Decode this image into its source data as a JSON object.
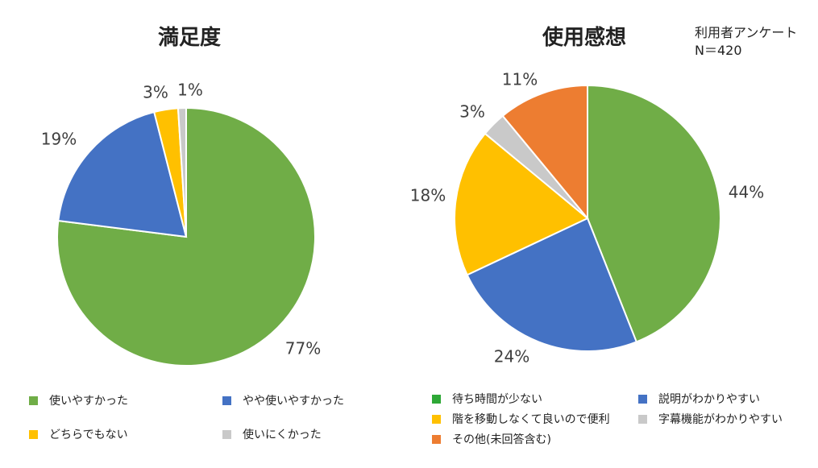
{
  "survey_note": {
    "line1": "利用者アンケート",
    "line2": "N＝420"
  },
  "colors": {
    "green": "#70AD47",
    "blue": "#4472C4",
    "yellow": "#FFC000",
    "gray": "#C9C9C9",
    "orange": "#ED7D31",
    "legend_green": "#2EA836"
  },
  "chart_data": [
    {
      "type": "pie",
      "title": "満足度",
      "categories": [
        "使いやすかった",
        "やや使いやすかった",
        "どちらでもない",
        "使いにくかった"
      ],
      "values": [
        77,
        19,
        3,
        1
      ],
      "labels": [
        "77%",
        "19%",
        "3%",
        "1%"
      ],
      "colors": [
        "#70AD47",
        "#4472C4",
        "#FFC000",
        "#C9C9C9"
      ],
      "legend": "bottom"
    },
    {
      "type": "pie",
      "title": "使用感想",
      "categories": [
        "説明がわかりやすい",
        "階を移動しなくて良いので便利",
        "字幕機能がわかりやすい",
        "その他(未回答含む)"
      ],
      "values": [
        44,
        24,
        18,
        3,
        11
      ],
      "slice_categories": [
        "待ち時間が少ない",
        "説明がわかりやすい",
        "階を移動しなくて良いので便利",
        "字幕機能がわかりやすい",
        "その他(未回答含む)"
      ],
      "labels": [
        "44%",
        "24%",
        "18%",
        "3%",
        "11%"
      ],
      "colors": [
        "#70AD47",
        "#4472C4",
        "#FFC000",
        "#C9C9C9",
        "#ED7D31"
      ],
      "legend_entries": [
        {
          "label": "待ち時間が少ない",
          "color": "#2EA836"
        },
        {
          "label": "説明がわかりやすい",
          "color": "#4472C4"
        },
        {
          "label": "階を移動しなくて良いので便利",
          "color": "#FFC000"
        },
        {
          "label": "字幕機能がわかりやすい",
          "color": "#C9C9C9"
        },
        {
          "label": "その他(未回答含む)",
          "color": "#ED7D31"
        }
      ],
      "legend": "bottom"
    }
  ]
}
